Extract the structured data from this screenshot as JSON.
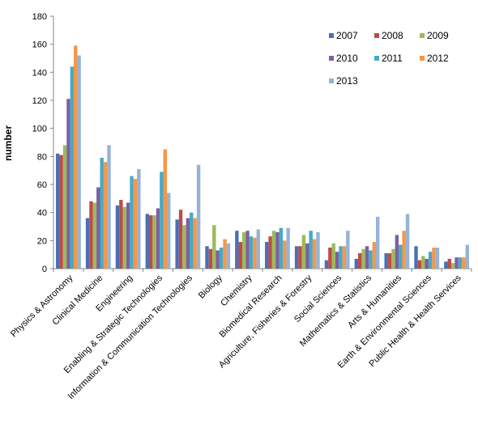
{
  "chart_data": {
    "type": "bar",
    "title": "",
    "xlabel": "",
    "ylabel": "number",
    "ylim": [
      0,
      180
    ],
    "yticks": [
      0,
      20,
      40,
      60,
      80,
      100,
      120,
      140,
      160,
      180
    ],
    "grid": false,
    "legend_position": "top-right",
    "categories": [
      "Physics & Astronomy",
      "Clinical Medicine",
      "Engineering",
      "Enabling & Strategic Technologies",
      "Information & Communication Technologies",
      "Biology",
      "Chemistry",
      "Biomedical Research",
      "Agriculture, Fisheries & Forestry",
      "Social Sciences",
      "Mathematics & Statistics",
      "Arts & Humanities",
      "Earth & Environmental Sciences",
      "Public Health & Health Services"
    ],
    "series": [
      {
        "name": "2007",
        "color": "#4a6fb5",
        "values": [
          82,
          36,
          45,
          39,
          35,
          16,
          27,
          19,
          16,
          6,
          7,
          11,
          16,
          5
        ]
      },
      {
        "name": "2008",
        "color": "#be4b48",
        "values": [
          81,
          48,
          49,
          38,
          42,
          14,
          19,
          23,
          16,
          15,
          11,
          11,
          6,
          7
        ]
      },
      {
        "name": "2009",
        "color": "#9bbb59",
        "values": [
          88,
          47,
          44,
          38,
          31,
          31,
          26,
          27,
          24,
          18,
          14,
          14,
          9,
          4
        ]
      },
      {
        "name": "2010",
        "color": "#7d60a0",
        "values": [
          121,
          58,
          47,
          43,
          36,
          13,
          27,
          26,
          18,
          12,
          16,
          24,
          7,
          8
        ]
      },
      {
        "name": "2011",
        "color": "#46aac5",
        "values": [
          144,
          79,
          66,
          69,
          40,
          15,
          23,
          29,
          27,
          16,
          13,
          17,
          12,
          8
        ]
      },
      {
        "name": "2012",
        "color": "#f79646",
        "values": [
          159,
          76,
          64,
          85,
          36,
          21,
          22,
          20,
          21,
          16,
          19,
          27,
          15,
          8
        ]
      },
      {
        "name": "2013",
        "color": "#95b3d7",
        "values": [
          152,
          88,
          71,
          54,
          74,
          18,
          28,
          29,
          26,
          27,
          37,
          39,
          15,
          17
        ]
      }
    ]
  }
}
